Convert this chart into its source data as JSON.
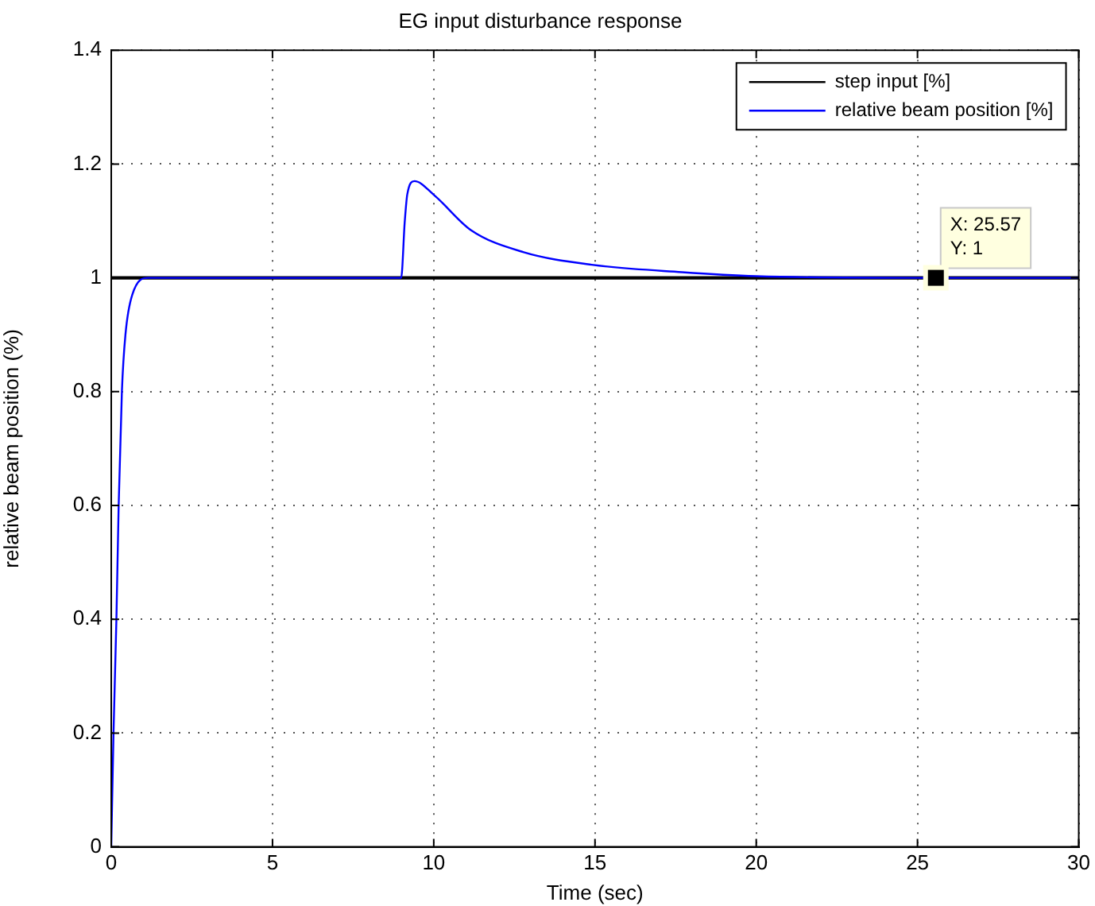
{
  "chart_data": {
    "type": "line",
    "title": "EG input disturbance response",
    "xlabel": "Time (sec)",
    "ylabel": "relative beam position (%)",
    "series": [
      {
        "name": "step input [%]",
        "color": "#000000",
        "x": [
          0,
          30
        ],
        "values": [
          1,
          1
        ]
      },
      {
        "name": "relative beam position [%]",
        "color": "#0000ff",
        "x": [
          0,
          0.07,
          0.16,
          0.23,
          0.33,
          0.44,
          0.65,
          1.15,
          8.99,
          9.1,
          9.18,
          9.4,
          10.0,
          11.15,
          12.79,
          14.9,
          17.7,
          20,
          25,
          30
        ],
        "values": [
          0,
          0.2,
          0.4,
          0.6,
          0.8,
          0.9,
          0.97,
          1,
          1,
          1.098,
          1.147,
          1.17,
          1.146,
          1.084,
          1.045,
          1.023,
          1.01,
          1.003,
          1,
          1
        ]
      }
    ],
    "xlim": [
      0,
      30
    ],
    "xticks": [
      0,
      5,
      10,
      15,
      20,
      25,
      30
    ],
    "ylim": [
      0,
      1.4
    ],
    "yticks": [
      0,
      0.2,
      0.4,
      0.6,
      0.8,
      1,
      1.2,
      1.4
    ],
    "grid": true,
    "legend": "top right",
    "marker": "none",
    "line_style": "solid",
    "annotations": [
      {
        "text": "X: 25.57\nY: 1",
        "x": 25.57,
        "y": 1
      }
    ]
  }
}
